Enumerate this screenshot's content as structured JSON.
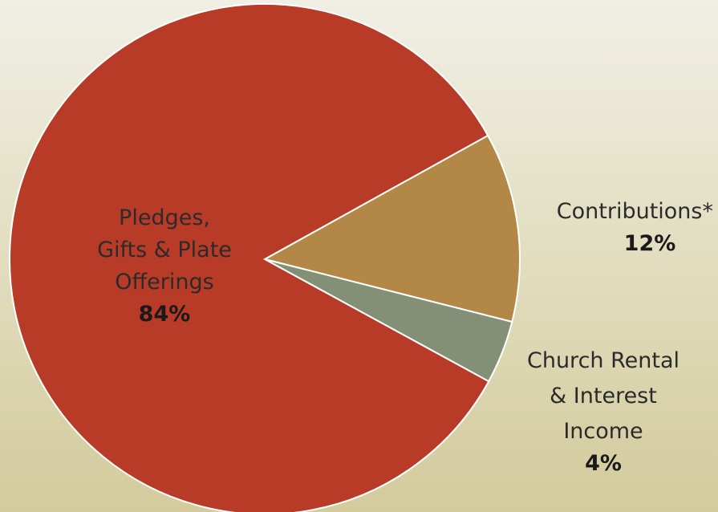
{
  "chart_data": {
    "type": "pie",
    "slices": [
      {
        "name_lines": [
          "Pledges,",
          "Gifts & Plate",
          "Offerings"
        ],
        "value": 84,
        "value_label": "84%",
        "color": "#b83b27"
      },
      {
        "name_lines": [
          "Contributions*"
        ],
        "value": 12,
        "value_label": "12%",
        "color": "#b38746"
      },
      {
        "name_lines": [
          "Church Rental",
          "& Interest",
          "Income"
        ],
        "value": 4,
        "value_label": "4%",
        "color": "#849076"
      }
    ],
    "slice_border_color": "#ffffff",
    "background_gradient": [
      "#f1efe5",
      "#d3cb9c"
    ]
  }
}
